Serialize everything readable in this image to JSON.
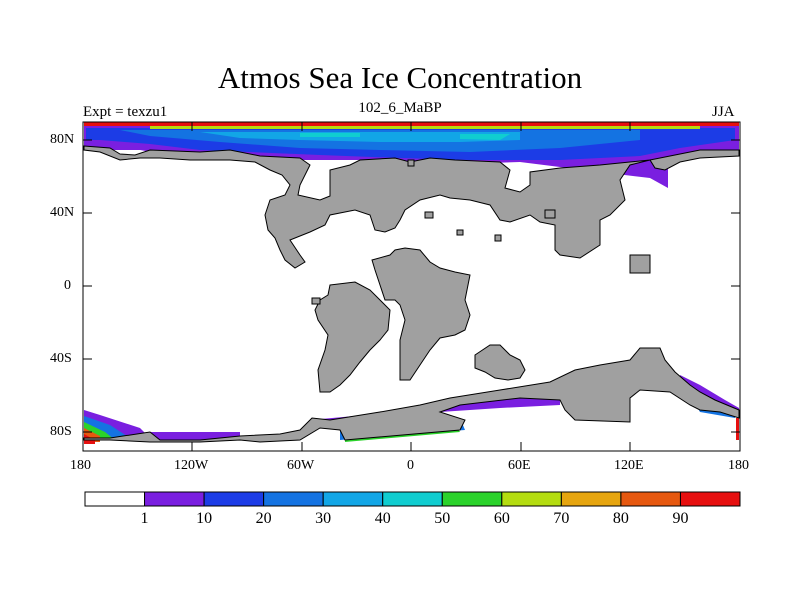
{
  "title": "Atmos Sea Ice Concentration",
  "left_string": "Expt = texzu1",
  "center_string": "102_6_MaBP",
  "right_string": "JJA",
  "y_tick_labels": [
    "80N",
    "40N",
    "0",
    "40S",
    "80S"
  ],
  "x_tick_labels": [
    "180",
    "120W",
    "60W",
    "0",
    "60E",
    "120E",
    "180"
  ],
  "colorbar": {
    "labels": [
      "1",
      "10",
      "20",
      "30",
      "40",
      "50",
      "60",
      "70",
      "80",
      "90"
    ],
    "colors": [
      "#ffffff",
      "#7a1fe0",
      "#1c3ce6",
      "#1473e2",
      "#12a6e6",
      "#10cdd0",
      "#2bd22b",
      "#b4dc10",
      "#e6a50f",
      "#e6580f",
      "#e60f0f"
    ]
  },
  "land_color": "#a0a0a0"
}
